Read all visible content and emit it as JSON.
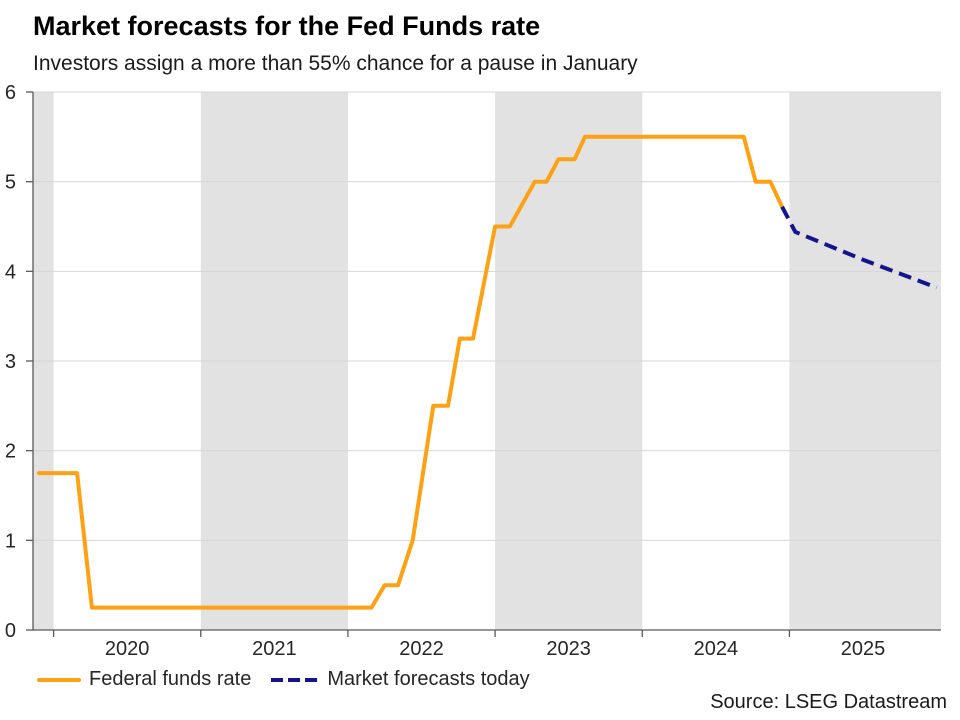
{
  "header": {
    "title": "Market forecasts for the Fed Funds rate",
    "subtitle": "Investors assign a more than 55% chance for a pause in January"
  },
  "source": "Source: LSEG Datastream",
  "legend": [
    {
      "label": "Federal funds rate",
      "style": "solid",
      "color": "#FFA114"
    },
    {
      "label": "Market forecasts today",
      "style": "dashed",
      "color": "#14148C"
    }
  ],
  "colors": {
    "fed_line": "#FFA114",
    "forecast_line": "#14148C",
    "band": "#E2E2E2",
    "gridline": "#D7D7D7",
    "axis": "#595959",
    "tick_text": "#262626"
  },
  "chart_data": {
    "type": "line",
    "title": "Market forecasts for the Fed Funds rate",
    "subtitle": "Investors assign a more than 55% chance for a pause in January",
    "xlabel": "",
    "ylabel": "",
    "grid": true,
    "legend_position": "bottom",
    "x_domain": [
      2019.86,
      2026.03
    ],
    "y_domain": [
      0,
      6
    ],
    "y_ticks": [
      0,
      1,
      2,
      3,
      4,
      5,
      6
    ],
    "x_year_ticks": [
      2020,
      2021,
      2022,
      2023,
      2024,
      2025
    ],
    "x_tick_labels": [
      "2020",
      "2021",
      "2022",
      "2023",
      "2024",
      "2025"
    ],
    "shaded_year_bands": [
      [
        2019.86,
        2020.0
      ],
      [
        2021.0,
        2022.0
      ],
      [
        2023.0,
        2024.0
      ],
      [
        2025.0,
        2026.03
      ]
    ],
    "series": [
      {
        "name": "Federal funds rate",
        "style": "solid",
        "color": "#FFA114",
        "points": [
          [
            2019.9,
            1.75
          ],
          [
            2020.16,
            1.75
          ],
          [
            2020.26,
            0.25
          ],
          [
            2022.16,
            0.25
          ],
          [
            2022.25,
            0.5
          ],
          [
            2022.34,
            0.5
          ],
          [
            2022.44,
            1.0
          ],
          [
            2022.58,
            2.5
          ],
          [
            2022.68,
            2.5
          ],
          [
            2022.76,
            3.25
          ],
          [
            2022.85,
            3.25
          ],
          [
            2023.0,
            4.5
          ],
          [
            2023.1,
            4.5
          ],
          [
            2023.27,
            5.0
          ],
          [
            2023.35,
            5.0
          ],
          [
            2023.43,
            5.25
          ],
          [
            2023.54,
            5.25
          ],
          [
            2023.61,
            5.5
          ],
          [
            2024.69,
            5.5
          ],
          [
            2024.77,
            5.0
          ],
          [
            2024.87,
            5.0
          ],
          [
            2024.95,
            4.72
          ]
        ]
      },
      {
        "name": "Market forecasts today",
        "style": "dashed",
        "color": "#14148C",
        "points": [
          [
            2024.95,
            4.72
          ],
          [
            2025.04,
            4.44
          ],
          [
            2025.5,
            4.13
          ],
          [
            2026.0,
            3.82
          ]
        ]
      }
    ]
  }
}
